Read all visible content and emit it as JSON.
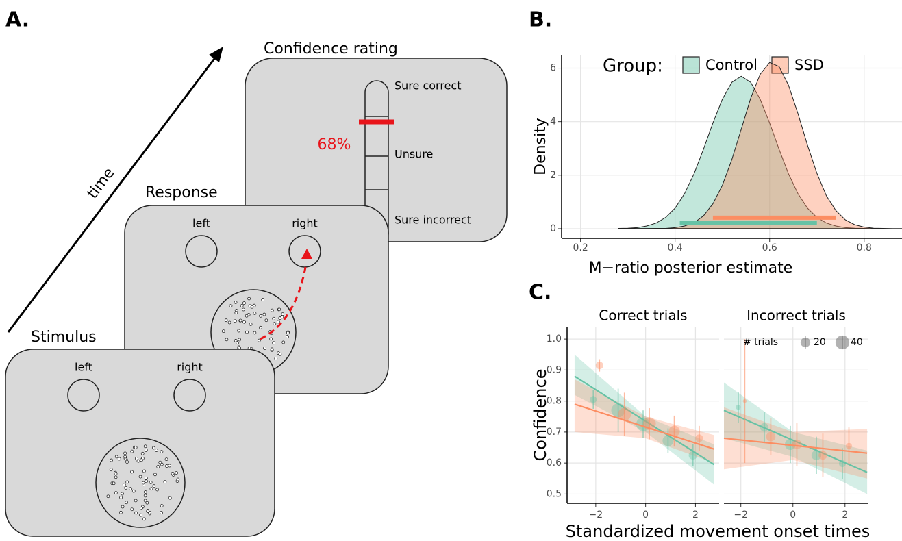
{
  "panel_a": {
    "label": "A.",
    "time": "time",
    "stimulus": {
      "title": "Stimulus",
      "left": "left",
      "right": "right"
    },
    "response": {
      "title": "Response",
      "left": "left",
      "right": "right"
    },
    "confidence": {
      "title": "Confidence rating",
      "scale": [
        "Sure correct",
        "Unsure",
        "Sure incorrect"
      ],
      "rating": "68%"
    }
  },
  "chart_data": [
    {
      "type": "density",
      "panel_label": "B.",
      "legend_title": "Group:",
      "xlabel": "M−ratio posterior estimate",
      "ylabel": "Density",
      "x": [
        0.28,
        0.3,
        0.32,
        0.34,
        0.36,
        0.38,
        0.4,
        0.42,
        0.44,
        0.46,
        0.48,
        0.5,
        0.52,
        0.54,
        0.56,
        0.58,
        0.6,
        0.62,
        0.64,
        0.66,
        0.68,
        0.7,
        0.72,
        0.74,
        0.76,
        0.78,
        0.8,
        0.82,
        0.84,
        0.86,
        0.88
      ],
      "series": [
        {
          "name": "Control",
          "color": "#66c2a5",
          "interval": [
            0.41,
            0.7
          ],
          "values": [
            0.01,
            0.02,
            0.04,
            0.1,
            0.21,
            0.42,
            0.77,
            1.31,
            2.05,
            2.97,
            3.95,
            4.84,
            5.47,
            5.7,
            5.47,
            4.84,
            3.95,
            2.97,
            2.05,
            1.31,
            0.77,
            0.42,
            0.21,
            0.1,
            0.04,
            0.02,
            0.01,
            0,
            0,
            0,
            0
          ]
        },
        {
          "name": "SSD",
          "color": "#fc8d62",
          "interval": [
            0.48,
            0.74
          ],
          "values": [
            0,
            0,
            0,
            0,
            0.01,
            0.01,
            0.04,
            0.1,
            0.22,
            0.48,
            0.93,
            1.62,
            2.58,
            3.72,
            4.88,
            5.77,
            6.21,
            6.06,
            5.36,
            4.3,
            3.13,
            2.07,
            1.23,
            0.68,
            0.33,
            0.15,
            0.06,
            0.02,
            0.01,
            0,
            0
          ]
        }
      ],
      "xlim": [
        0.16,
        0.88
      ],
      "xticks": [
        0.2,
        0.4,
        0.6,
        0.8
      ],
      "ylim": [
        -0.36,
        6.5
      ],
      "yticks": [
        0,
        2,
        4,
        6
      ],
      "grid": true
    },
    {
      "type": "scatter",
      "panel_label": "C.",
      "title": "Correct trials",
      "ylabel": "Confidence",
      "xlabel": "Standardized movement onset times",
      "series": [
        {
          "color": "#66c2a5",
          "x": [
            -2.1,
            -1.1,
            -0.1,
            0.9,
            1.9
          ],
          "values": [
            0.805,
            0.77,
            0.725,
            0.672,
            0.625
          ],
          "sizes": [
            10,
            40,
            40,
            25,
            15
          ],
          "errors": [
            0.03,
            0.07,
            0.045,
            0.04,
            0.035
          ],
          "fit": {
            "x": [
              -2.85,
              2.75
            ],
            "values": [
              0.88,
              0.595
            ]
          },
          "ribbon": {
            "x": [
              -2.85,
              0,
              2.75
            ],
            "lower": [
              0.82,
              0.7,
              0.53
            ],
            "upper": [
              0.95,
              0.75,
              0.66
            ]
          }
        },
        {
          "color": "#fc8d62",
          "x": [
            -1.85,
            -0.85,
            0.15,
            1.15,
            2.15
          ],
          "values": [
            0.915,
            0.757,
            0.727,
            0.703,
            0.68
          ],
          "sizes": [
            12,
            35,
            35,
            25,
            12
          ],
          "errors": [
            0.02,
            0.07,
            0.05,
            0.05,
            0.04
          ],
          "fit": {
            "x": [
              -2.85,
              2.75
            ],
            "values": [
              0.79,
              0.645
            ]
          },
          "ribbon": {
            "x": [
              -2.85,
              0,
              2.75
            ],
            "lower": [
              0.7,
              0.68,
              0.6
            ],
            "upper": [
              0.87,
              0.75,
              0.69
            ]
          }
        }
      ],
      "xlim": [
        -3.15,
        2.95
      ],
      "xticks": [
        {
          "value": -2,
          "label": "−2"
        },
        0,
        2
      ],
      "ylim": [
        0.47,
        1.04
      ],
      "yticks": [
        0.5,
        0.6,
        0.7,
        0.8,
        0.9,
        {
          "value": 1,
          "label": "1.0"
        }
      ],
      "grid": true
    },
    {
      "type": "scatter",
      "title": "Incorrect trials",
      "size_legend": {
        "title": "# trials",
        "sizes": [
          20,
          40
        ]
      },
      "series": [
        {
          "color": "#66c2a5",
          "x": [
            -2.1,
            -1.1,
            -0.1,
            0.9,
            1.9
          ],
          "values": [
            0.78,
            0.715,
            0.66,
            0.625,
            0.598
          ],
          "sizes": [
            5,
            15,
            25,
            20,
            10
          ],
          "errors": [
            0.05,
            0.05,
            0.06,
            0.06,
            0.05
          ],
          "fit": {
            "x": [
              -2.65,
              2.85
            ],
            "values": [
              0.77,
              0.57
            ]
          },
          "ribbon": {
            "x": [
              -2.65,
              0,
              2.85
            ],
            "lower": [
              0.68,
              0.62,
              0.5
            ],
            "upper": [
              0.86,
              0.7,
              0.64
            ]
          }
        },
        {
          "color": "#fc8d62",
          "x": [
            -1.85,
            -0.85,
            0.15,
            1.15,
            2.15
          ],
          "values": [
            0.8,
            0.685,
            0.66,
            0.625,
            0.655
          ],
          "sizes": [
            3,
            18,
            20,
            15,
            8
          ],
          "errors": [
            0.2,
            0.06,
            0.07,
            0.07,
            0.06
          ],
          "fit": {
            "x": [
              -2.65,
              2.85
            ],
            "values": [
              0.68,
              0.632
            ]
          },
          "ribbon": {
            "x": [
              -2.65,
              0,
              2.85
            ],
            "lower": [
              0.58,
              0.61,
              0.55
            ],
            "upper": [
              0.78,
              0.7,
              0.71
            ]
          }
        }
      ],
      "xlim": [
        -2.65,
        2.9
      ],
      "xticks": [
        {
          "value": -2,
          "label": "−2"
        },
        0,
        2
      ],
      "ylim": [
        0.47,
        1.04
      ],
      "yticks": [
        0.5,
        0.6,
        0.7,
        0.8,
        0.9,
        {
          "value": 1,
          "label": "1.0"
        }
      ],
      "grid": true
    }
  ]
}
